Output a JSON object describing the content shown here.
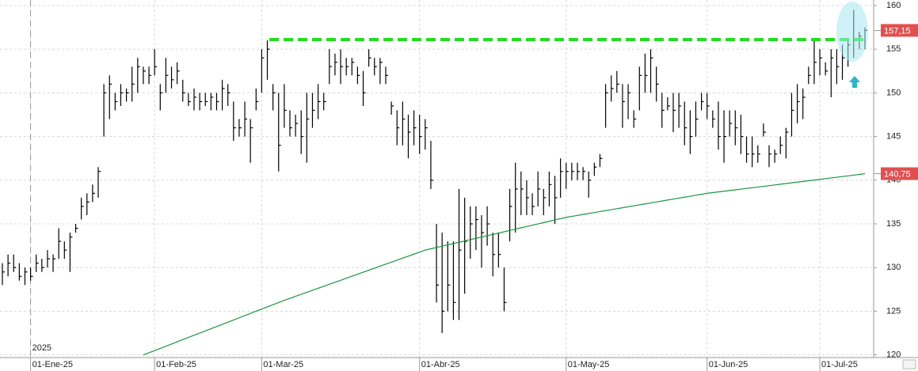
{
  "chart_data": {
    "type": "ohlc",
    "categories": [
      null,
      null,
      null,
      null,
      null,
      "01-Ene-25",
      null,
      null,
      null,
      null,
      null,
      null,
      null,
      null,
      null,
      null,
      null,
      null,
      null,
      null,
      null,
      null,
      null,
      null,
      null,
      null,
      null,
      "01-Feb-25",
      null,
      null,
      null,
      null,
      null,
      null,
      null,
      null,
      null,
      null,
      null,
      null,
      null,
      null,
      null,
      null,
      null,
      null,
      "01-Mar-25",
      null,
      null,
      null,
      null,
      null,
      null,
      null,
      null,
      null,
      null,
      null,
      null,
      null,
      null,
      null,
      null,
      null,
      null,
      null,
      null,
      null,
      null,
      null,
      null,
      null,
      null,
      null,
      "01-Abr-25",
      null,
      null,
      null,
      null,
      null,
      null,
      null,
      null,
      null,
      null,
      null,
      null,
      null,
      null,
      null,
      null,
      null,
      null,
      null,
      null,
      null,
      null,
      null,
      null,
      null,
      "01-May-25",
      null,
      null,
      null,
      null,
      null,
      null,
      null,
      null,
      null,
      null,
      null,
      null,
      null,
      null,
      null,
      null,
      null,
      null,
      null,
      null,
      null,
      null,
      null,
      null,
      "01-Jun-25",
      null,
      null,
      null,
      null,
      null,
      null,
      null,
      null,
      null,
      null,
      null,
      null,
      null,
      null,
      null,
      null,
      null,
      null,
      null,
      "01-Jul-25",
      null,
      null,
      null,
      null,
      null,
      null,
      null,
      null
    ],
    "series": [
      {
        "type": "ohlc",
        "color": "#000000",
        "low": [
          128,
          129,
          129.5,
          128.5,
          128,
          128.5,
          129.5,
          129.5,
          130,
          129.5,
          131,
          131,
          129.5,
          134,
          135.5,
          136,
          137.5,
          138,
          145,
          147,
          148,
          148.5,
          149,
          149,
          150,
          151,
          151,
          152,
          148,
          150,
          150.5,
          151,
          149,
          148.5,
          148,
          148,
          148.5,
          148,
          148,
          148,
          148.5,
          144.5,
          145,
          145,
          142,
          148,
          150,
          151.5,
          148,
          141,
          146,
          145,
          145,
          143,
          142,
          146,
          147,
          148,
          151,
          152,
          151,
          152,
          152,
          151,
          148.5,
          153,
          152,
          151,
          151,
          147.5,
          144,
          144,
          142.5,
          144,
          143,
          143.5,
          139,
          126,
          122.5,
          125,
          124,
          124,
          127,
          131,
          132,
          130,
          132.5,
          129,
          130,
          125,
          133,
          134,
          136,
          136,
          136,
          137,
          136,
          137,
          135,
          138,
          139,
          140,
          140,
          140,
          138,
          140.5,
          141.5,
          146,
          149,
          150,
          146,
          147,
          146,
          148,
          150,
          150,
          149,
          146,
          148,
          145.5,
          146,
          144,
          143,
          145,
          148,
          147,
          146,
          143.5,
          142,
          145,
          144,
          143,
          142,
          141.5,
          142,
          145,
          141.5,
          142,
          143,
          142.5,
          145,
          146.5,
          147,
          151,
          151,
          152,
          152,
          149.5,
          151,
          151.5,
          153,
          154,
          155,
          155
        ],
        "high": [
          130.5,
          131.5,
          131.5,
          130.5,
          130,
          130,
          131.5,
          131,
          132,
          131.5,
          134.5,
          133,
          134,
          135,
          138,
          138.5,
          139.5,
          141.5,
          151,
          152,
          150,
          151,
          150.5,
          153,
          154,
          153,
          153,
          155,
          151,
          154,
          153,
          153.5,
          151.5,
          150,
          150.5,
          150,
          150,
          150,
          150,
          151.5,
          151,
          149,
          147,
          149,
          147,
          150.5,
          155,
          156,
          151,
          150,
          151,
          148,
          147.5,
          148,
          150,
          150,
          151,
          150,
          155,
          154.5,
          155,
          154,
          154,
          153,
          152.5,
          155,
          154,
          154,
          153,
          149,
          148,
          149,
          147.5,
          148,
          147.5,
          147,
          144.5,
          135,
          134,
          133,
          133,
          139,
          138,
          137,
          137,
          136,
          137,
          134,
          134,
          130,
          139,
          142,
          141,
          140,
          138.5,
          141,
          139,
          141,
          140.5,
          142.5,
          142,
          142,
          142,
          141.5,
          141,
          142,
          143,
          151,
          152,
          152.5,
          151,
          151,
          148,
          153,
          154.5,
          155,
          153,
          150,
          149.5,
          150,
          150,
          149,
          148,
          149,
          150,
          150,
          148,
          149,
          148,
          148,
          148,
          147.5,
          145,
          145,
          144,
          146.5,
          144,
          143.5,
          145,
          146,
          150,
          151,
          150.5,
          153,
          156,
          155,
          153.5,
          155,
          155,
          155.5,
          156,
          159.5,
          157,
          157.5
        ],
        "close": [
          129.5,
          130.5,
          130,
          129,
          129.5,
          129,
          130.5,
          130,
          131,
          131,
          133,
          132,
          133.5,
          134.5,
          137,
          137.5,
          138.5,
          141,
          150,
          151,
          149,
          150,
          150,
          151,
          153,
          152.5,
          152,
          153,
          150,
          152,
          151.5,
          152.5,
          150,
          149,
          149.5,
          149,
          149,
          149.5,
          149,
          150.5,
          150,
          146,
          146,
          147,
          146,
          149,
          154,
          155,
          150,
          144,
          148,
          146,
          146.5,
          145,
          147,
          148,
          149,
          149,
          153,
          153.5,
          153,
          153,
          153.5,
          152,
          150,
          154,
          153,
          153.5,
          152,
          148.5,
          146,
          147,
          145.5,
          146,
          145,
          146,
          140,
          128,
          125,
          128,
          126,
          132,
          133,
          135,
          135.5,
          134,
          135,
          131.5,
          131.5,
          126,
          137,
          139,
          139,
          138,
          137,
          139,
          138,
          139.5,
          138,
          141,
          141,
          141,
          141,
          141,
          140,
          141.5,
          142.5,
          150,
          150.5,
          151,
          149,
          150,
          147,
          152,
          152,
          154,
          151,
          148,
          148.5,
          148,
          148.5,
          146,
          145,
          147,
          149,
          148.5,
          147,
          145,
          145,
          146.5,
          146,
          145,
          143,
          143,
          143,
          145.5,
          143,
          143,
          144,
          145.5,
          148,
          149,
          149.5,
          152,
          153.5,
          154,
          152.5,
          154,
          153,
          154,
          155.5,
          156,
          156.5,
          157.15
        ]
      },
      {
        "type": "line",
        "color": "#1a9641",
        "values": [
          null,
          null,
          null,
          null,
          null,
          null,
          null,
          null,
          null,
          null,
          null,
          null,
          null,
          null,
          null,
          null,
          null,
          null,
          null,
          null,
          null,
          null,
          null,
          null,
          null,
          120.0,
          120.25,
          120.5,
          120.75,
          121.0,
          121.25,
          121.5,
          121.75,
          122.0,
          122.25,
          122.5,
          122.75,
          123.0,
          123.25,
          123.5,
          123.75,
          124.0,
          124.25,
          124.5,
          124.75,
          125.0,
          125.25,
          125.5,
          125.75,
          126.0,
          126.25,
          126.48,
          126.71,
          126.94,
          127.17,
          127.4,
          127.63,
          127.86,
          128.09,
          128.32,
          128.55,
          128.78,
          129.01,
          129.24,
          129.47,
          129.7,
          129.93,
          130.16,
          130.39,
          130.62,
          130.85,
          131.08,
          131.31,
          131.54,
          131.77,
          132.0,
          132.15,
          132.3,
          132.45,
          132.6,
          132.75,
          132.9,
          133.05,
          133.2,
          133.35,
          133.5,
          133.65,
          133.8,
          133.95,
          134.1,
          134.25,
          134.4,
          134.55,
          134.7,
          134.85,
          135.0,
          135.15,
          135.3,
          135.45,
          135.6,
          135.75,
          135.86,
          135.97,
          136.08,
          136.19,
          136.3,
          136.41,
          136.52,
          136.63,
          136.74,
          136.85,
          136.96,
          137.07,
          137.18,
          137.29,
          137.4,
          137.51,
          137.62,
          137.73,
          137.84,
          137.95,
          138.06,
          138.17,
          138.28,
          138.39,
          138.5,
          138.58,
          138.66,
          138.74,
          138.82,
          138.9,
          138.98,
          139.06,
          139.14,
          139.22,
          139.3,
          139.38,
          139.46,
          139.54,
          139.62,
          139.7,
          139.78,
          139.86,
          139.94,
          140.02,
          140.1,
          140.18,
          140.26,
          140.34,
          140.42,
          140.5,
          140.58,
          140.66,
          140.75
        ]
      }
    ],
    "resistance": {
      "value": 156.1,
      "color": "#22dd22"
    },
    "price_labels": [
      {
        "value": 157.15,
        "label": "157,15"
      },
      {
        "value": 140.75,
        "label": "140,75"
      }
    ],
    "year_label": "2025",
    "ylim": [
      119.7,
      160.63
    ],
    "yticks": [
      120,
      125,
      130,
      135,
      140,
      145,
      150,
      155,
      160
    ],
    "grid": true
  }
}
